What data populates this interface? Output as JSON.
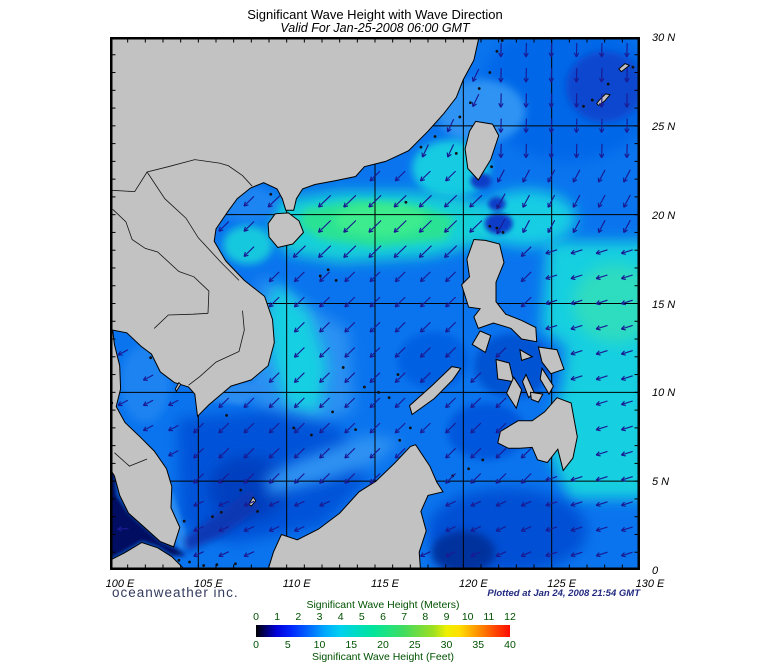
{
  "title": "Significant Wave Height with Wave Direction",
  "subtitle": "Valid For Jan-25-2008 06:00 GMT",
  "branding": "oceanweather inc.",
  "plotted_at": "Plotted at Jan 24, 2008 21:54 GMT",
  "axes": {
    "lon_labels": [
      "100 E",
      "105 E",
      "110 E",
      "115 E",
      "120 E",
      "125 E",
      "130 E"
    ],
    "lat_labels": [
      "30 N",
      "25 N",
      "20 N",
      "15 N",
      "10 N",
      "5 N",
      "0"
    ]
  },
  "legend": {
    "title_meters": "Significant Wave Height (Meters)",
    "title_feet": "Significant Wave Height (Feet)",
    "meters_ticks": [
      "0",
      "1",
      "2",
      "3",
      "4",
      "5",
      "6",
      "7",
      "8",
      "9",
      "10",
      "11",
      "12"
    ],
    "feet_ticks": [
      "0",
      "5",
      "10",
      "15",
      "20",
      "25",
      "30",
      "35",
      "40"
    ],
    "text_color": "#005200",
    "gradient": [
      [
        0,
        "#000000"
      ],
      [
        4,
        "#000070"
      ],
      [
        8,
        "#0000d8"
      ],
      [
        14,
        "#0028ff"
      ],
      [
        20,
        "#0060ff"
      ],
      [
        27,
        "#00a8ff"
      ],
      [
        33,
        "#00d0f0"
      ],
      [
        40,
        "#00dcc0"
      ],
      [
        46,
        "#00e49c"
      ],
      [
        52,
        "#20e380"
      ],
      [
        58,
        "#40dc60"
      ],
      [
        64,
        "#70dc40"
      ],
      [
        70,
        "#a0e020"
      ],
      [
        75,
        "#eef000"
      ],
      [
        80,
        "#ffe000"
      ],
      [
        84,
        "#ffb400"
      ],
      [
        89,
        "#ff8000"
      ],
      [
        94,
        "#ff4800"
      ],
      [
        100,
        "#ff0c00"
      ]
    ]
  },
  "map": {
    "colors": {
      "land": "#c2c2c2",
      "coastline": "#000000",
      "ocean_base": "#0a74ee",
      "wave_band_green": "#3dec8e",
      "cyan": "#14cfe2",
      "deep_blue": "#0452d8",
      "dark_strait": "#000d60",
      "arrow": "#1a1a92",
      "grid": "#000000"
    }
  }
}
